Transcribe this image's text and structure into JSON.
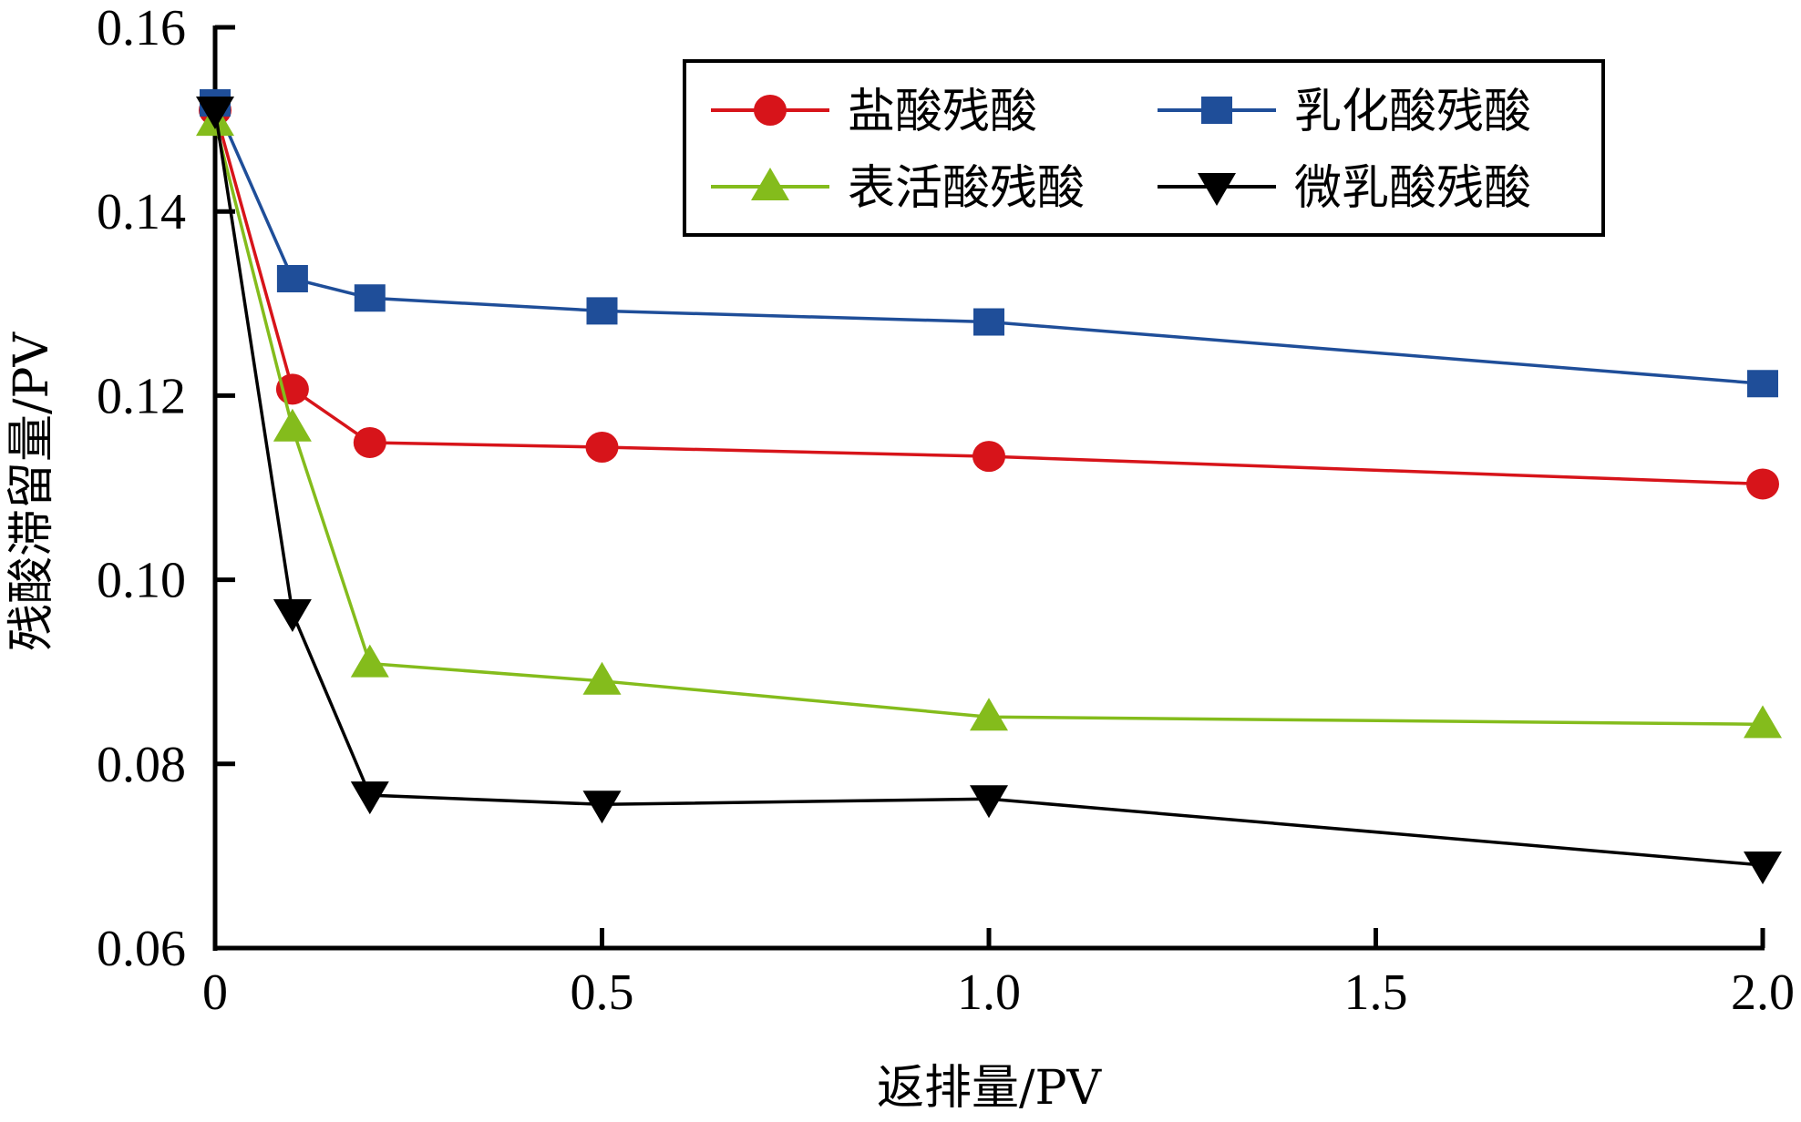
{
  "chart_data": {
    "type": "line",
    "title": "",
    "xlabel": "返排量/PV",
    "ylabel": "残酸滞留量/PV",
    "xlim": [
      0,
      2.0
    ],
    "ylim": [
      0.06,
      0.16
    ],
    "xticks": [
      0,
      0.5,
      1.0,
      1.5,
      2.0
    ],
    "xtick_labels": [
      "0",
      "0.5",
      "1.0",
      "1.5",
      "2.0"
    ],
    "yticks": [
      0.06,
      0.08,
      0.1,
      0.12,
      0.14,
      0.16
    ],
    "ytick_labels": [
      "0.06",
      "0.08",
      "0.10",
      "0.12",
      "0.14",
      "0.16"
    ],
    "grid": false,
    "legend_position": "top-right",
    "x": [
      0,
      0.1,
      0.2,
      0.5,
      1.0,
      2.0
    ],
    "series": [
      {
        "name": "盐酸残酸",
        "color": "#D7141A",
        "marker": "circle",
        "values": [
          0.151,
          0.1207,
          0.1149,
          0.1144,
          0.1134,
          0.1104
        ]
      },
      {
        "name": "乳化酸残酸",
        "color": "#1F4E99",
        "marker": "square",
        "values": [
          0.1518,
          0.1327,
          0.1306,
          0.1292,
          0.128,
          0.1213
        ]
      },
      {
        "name": "表活酸残酸",
        "color": "#84BC1C",
        "marker": "triangle-up",
        "values": [
          0.1497,
          0.1165,
          0.0909,
          0.089,
          0.0851,
          0.0843
        ]
      },
      {
        "name": "微乳酸残酸",
        "color": "#000000",
        "marker": "triangle-down",
        "values": [
          0.151,
          0.0964,
          0.0766,
          0.0756,
          0.0762,
          0.069
        ]
      }
    ]
  }
}
